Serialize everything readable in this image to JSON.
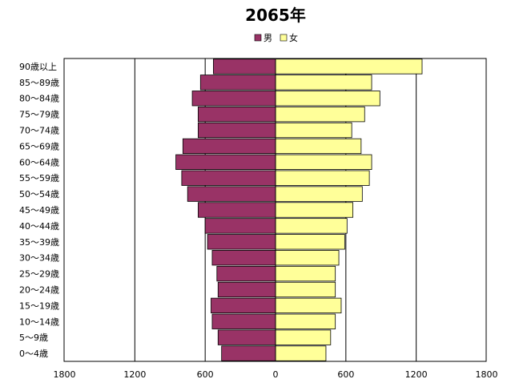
{
  "chart_data": {
    "type": "bar",
    "orientation": "horizontal-population-pyramid",
    "title": "2065年",
    "categories": [
      "90歳以上",
      "85～89歳",
      "80～84歳",
      "75～79歳",
      "70～74歳",
      "65～69歳",
      "60～64歳",
      "55～59歳",
      "50～54歳",
      "45～49歳",
      "40～44歳",
      "35～39歳",
      "30～34歳",
      "25～29歳",
      "20～24歳",
      "15～19歳",
      "10～14歳",
      "5～9歳",
      "0～4歳"
    ],
    "series": [
      {
        "name": "男",
        "color": "#993366",
        "direction": "left",
        "values": [
          530,
          640,
          710,
          660,
          660,
          790,
          850,
          800,
          750,
          660,
          600,
          580,
          540,
          500,
          490,
          550,
          540,
          490,
          460
        ]
      },
      {
        "name": "女",
        "color": "#ffff99",
        "direction": "right",
        "values": [
          1250,
          820,
          890,
          760,
          650,
          730,
          820,
          800,
          740,
          660,
          610,
          590,
          540,
          510,
          510,
          560,
          510,
          470,
          430
        ]
      }
    ],
    "xticks": [
      "1800",
      "1200",
      "600",
      "0",
      "600",
      "1200",
      "1800"
    ],
    "xlim": [
      -1800,
      1800
    ],
    "grid": "vertical",
    "legend": "top-center"
  }
}
